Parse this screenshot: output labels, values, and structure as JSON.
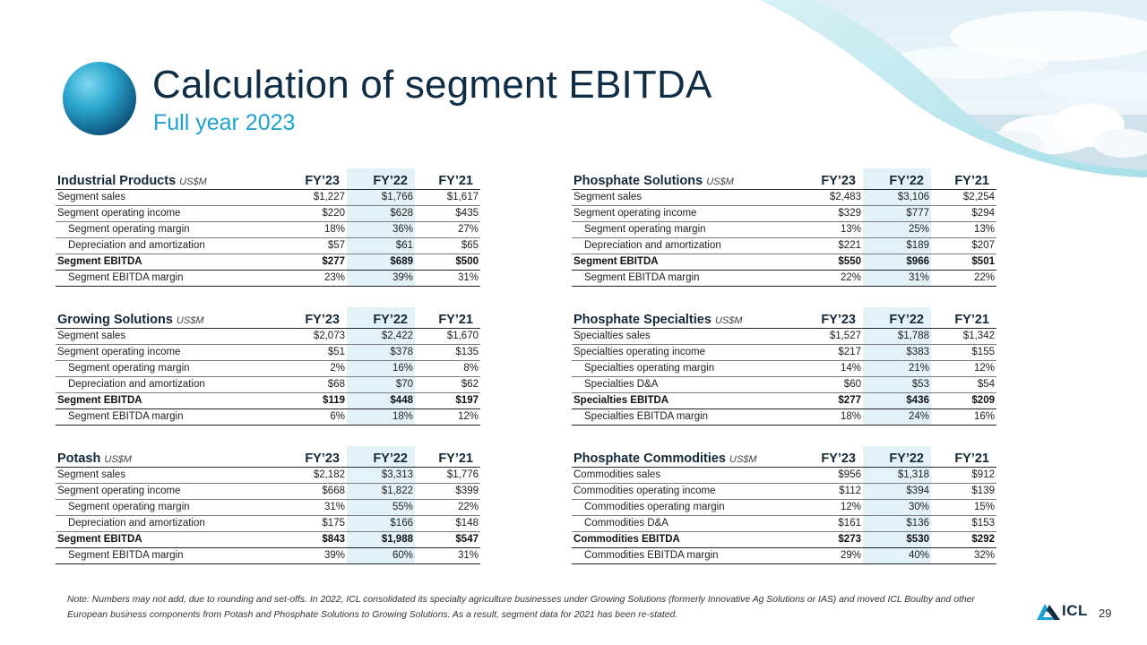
{
  "header": {
    "title": "Calculation of segment EBITDA",
    "subtitle": "Full year 2023"
  },
  "columns": [
    "FY’23",
    "FY’22",
    "FY’21"
  ],
  "tables": {
    "industrial": {
      "name": "Industrial Products",
      "unit": "US$M",
      "rows": [
        {
          "label": "Segment sales",
          "v": [
            "$1,227",
            "$1,766",
            "$1,617"
          ]
        },
        {
          "label": "Segment operating  income",
          "v": [
            "$220",
            "$628",
            "$435"
          ]
        },
        {
          "label": "Segment operating  margin",
          "v": [
            "18%",
            "36%",
            "27%"
          ]
        },
        {
          "label": "Depreciation  and  amortization",
          "v": [
            "$57",
            "$61",
            "$65"
          ]
        },
        {
          "label": "Segment EBITDA",
          "v": [
            "$277",
            "$689",
            "$500"
          ]
        },
        {
          "label": "Segment EBITDA margin",
          "v": [
            "23%",
            "39%",
            "31%"
          ]
        }
      ]
    },
    "growing": {
      "name": "Growing Solutions",
      "unit": "US$M",
      "rows": [
        {
          "label": "Segment sales",
          "v": [
            "$2,073",
            "$2,422",
            "$1,670"
          ]
        },
        {
          "label": "Segment operating  income",
          "v": [
            "$51",
            "$378",
            "$135"
          ]
        },
        {
          "label": "Segment operating  margin",
          "v": [
            "2%",
            "16%",
            "8%"
          ]
        },
        {
          "label": "Depreciation  and  amortization",
          "v": [
            "$68",
            "$70",
            "$62"
          ]
        },
        {
          "label": "Segment EBITDA",
          "v": [
            "$119",
            "$448",
            "$197"
          ]
        },
        {
          "label": "Segment EBITDA margin",
          "v": [
            "6%",
            "18%",
            "12%"
          ]
        }
      ]
    },
    "potash": {
      "name": "Potash",
      "unit": "US$M",
      "rows": [
        {
          "label": "Segment sales",
          "v": [
            "$2,182",
            "$3,313",
            "$1,776"
          ]
        },
        {
          "label": "Segment operating  income",
          "v": [
            "$668",
            "$1,822",
            "$399"
          ]
        },
        {
          "label": "Segment operating  margin",
          "v": [
            "31%",
            "55%",
            "22%"
          ]
        },
        {
          "label": "Depreciation  and  amortization",
          "v": [
            "$175",
            "$166",
            "$148"
          ]
        },
        {
          "label": "Segment EBITDA",
          "v": [
            "$843",
            "$1,988",
            "$547"
          ]
        },
        {
          "label": "Segment EBITDA margin",
          "v": [
            "39%",
            "60%",
            "31%"
          ]
        }
      ]
    },
    "phosphate_solutions": {
      "name": "Phosphate Solutions",
      "unit": "US$M",
      "rows": [
        {
          "label": "Segment sales",
          "v": [
            "$2,483",
            "$3,106",
            "$2,254"
          ]
        },
        {
          "label": "Segment operating  income",
          "v": [
            "$329",
            "$777",
            "$294"
          ]
        },
        {
          "label": "Segment operating  margin",
          "v": [
            "13%",
            "25%",
            "13%"
          ]
        },
        {
          "label": "Depreciation  and  amortization",
          "v": [
            "$221",
            "$189",
            "$207"
          ]
        },
        {
          "label": "Segment EBITDA",
          "v": [
            "$550",
            "$966",
            "$501"
          ]
        },
        {
          "label": "Segment EBITDA margin",
          "v": [
            "22%",
            "31%",
            "22%"
          ]
        }
      ]
    },
    "phosphate_specialties": {
      "name": "Phosphate Specialties",
      "unit": "US$M",
      "rows": [
        {
          "label": "Specialties sales",
          "v": [
            "$1,527",
            "$1,788",
            "$1,342"
          ]
        },
        {
          "label": "Specialties operating  income",
          "v": [
            "$217",
            "$383",
            "$155"
          ]
        },
        {
          "label": "Specialties operating  margin",
          "v": [
            "14%",
            "21%",
            "12%"
          ]
        },
        {
          "label": "Specialties D&A",
          "v": [
            "$60",
            "$53",
            "$54"
          ]
        },
        {
          "label": "Specialties  EBITDA",
          "v": [
            "$277",
            "$436",
            "$209"
          ]
        },
        {
          "label": "Specialties EBITDA margin",
          "v": [
            "18%",
            "24%",
            "16%"
          ]
        }
      ]
    },
    "phosphate_commodities": {
      "name": "Phosphate Commodities",
      "unit": "US$M",
      "rows": [
        {
          "label": "Commodities  sales",
          "v": [
            "$956",
            "$1,318",
            "$912"
          ]
        },
        {
          "label": "Commodities  operating income",
          "v": [
            "$112",
            "$394",
            "$139"
          ]
        },
        {
          "label": "Commodities  operating  margin",
          "v": [
            "12%",
            "30%",
            "15%"
          ]
        },
        {
          "label": "Commodities  D&A",
          "v": [
            "$161",
            "$136",
            "$153"
          ]
        },
        {
          "label": "Commodities EBITDA",
          "v": [
            "$273",
            "$530",
            "$292"
          ]
        },
        {
          "label": "Commodities  EBITDA margin",
          "v": [
            "29%",
            "40%",
            "32%"
          ]
        }
      ]
    }
  },
  "footer": {
    "note": "Note: Numbers may not add, due to rounding and set-offs. In 2022, ICL consolidated its specialty agriculture businesses under Growing Solutions (formerly Innovative Ag Solutions or IAS) and moved ICL Boulby and other European business components from Potash and Phosphate Solutions to Growing Solutions. As a result, segment data for 2021 has been re-stated.",
    "logo_text": "ICL",
    "page_number": "29"
  },
  "colors": {
    "title": "#0f2d45",
    "subtitle": "#1ea2d2",
    "highlight_column": "#e2f2f8",
    "accent": "#1ea2d2"
  }
}
